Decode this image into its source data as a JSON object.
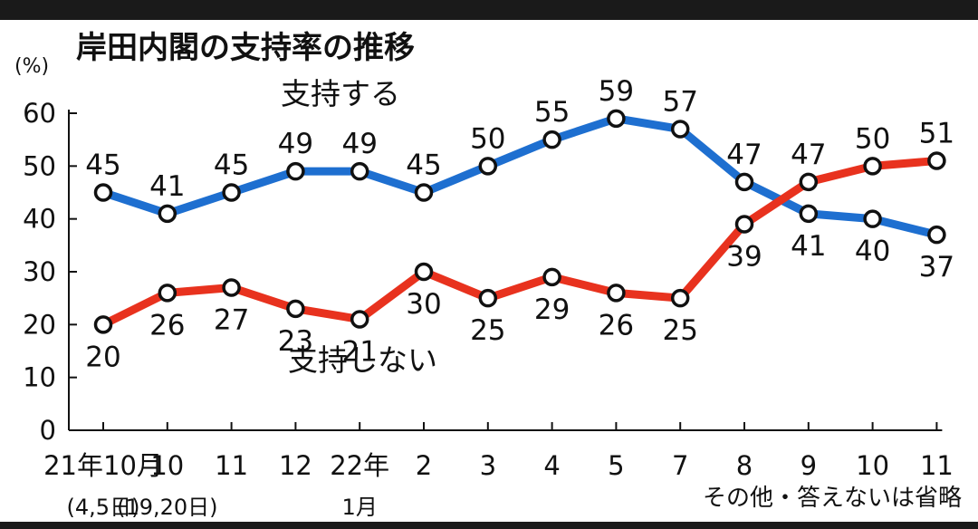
{
  "chart_data": {
    "type": "line",
    "title": "岸田内閣の支持率の推移",
    "unit_label": "(%)",
    "ylim": [
      0,
      60
    ],
    "yticks": [
      "0",
      "10",
      "20",
      "30",
      "40",
      "50",
      "60"
    ],
    "categories": [
      "21年10月",
      "10",
      "11",
      "12",
      "22年",
      "2",
      "3",
      "4",
      "5",
      "7",
      "8",
      "9",
      "10",
      "11"
    ],
    "category_sublabels": [
      "(4,5日)",
      "(19,20日)",
      "",
      "",
      "1月",
      "",
      "",
      "",
      "",
      "",
      "",
      "",
      "",
      ""
    ],
    "series": [
      {
        "name": "支持する",
        "color": "#1e6fd0",
        "values": [
          45,
          41,
          45,
          49,
          49,
          45,
          50,
          55,
          59,
          57,
          47,
          41,
          40,
          37
        ]
      },
      {
        "name": "支持しない",
        "color": "#e8321e",
        "values": [
          20,
          26,
          27,
          23,
          21,
          30,
          25,
          29,
          26,
          25,
          39,
          47,
          50,
          51
        ]
      }
    ],
    "note": "その他・答えないは省略",
    "grid": false
  }
}
